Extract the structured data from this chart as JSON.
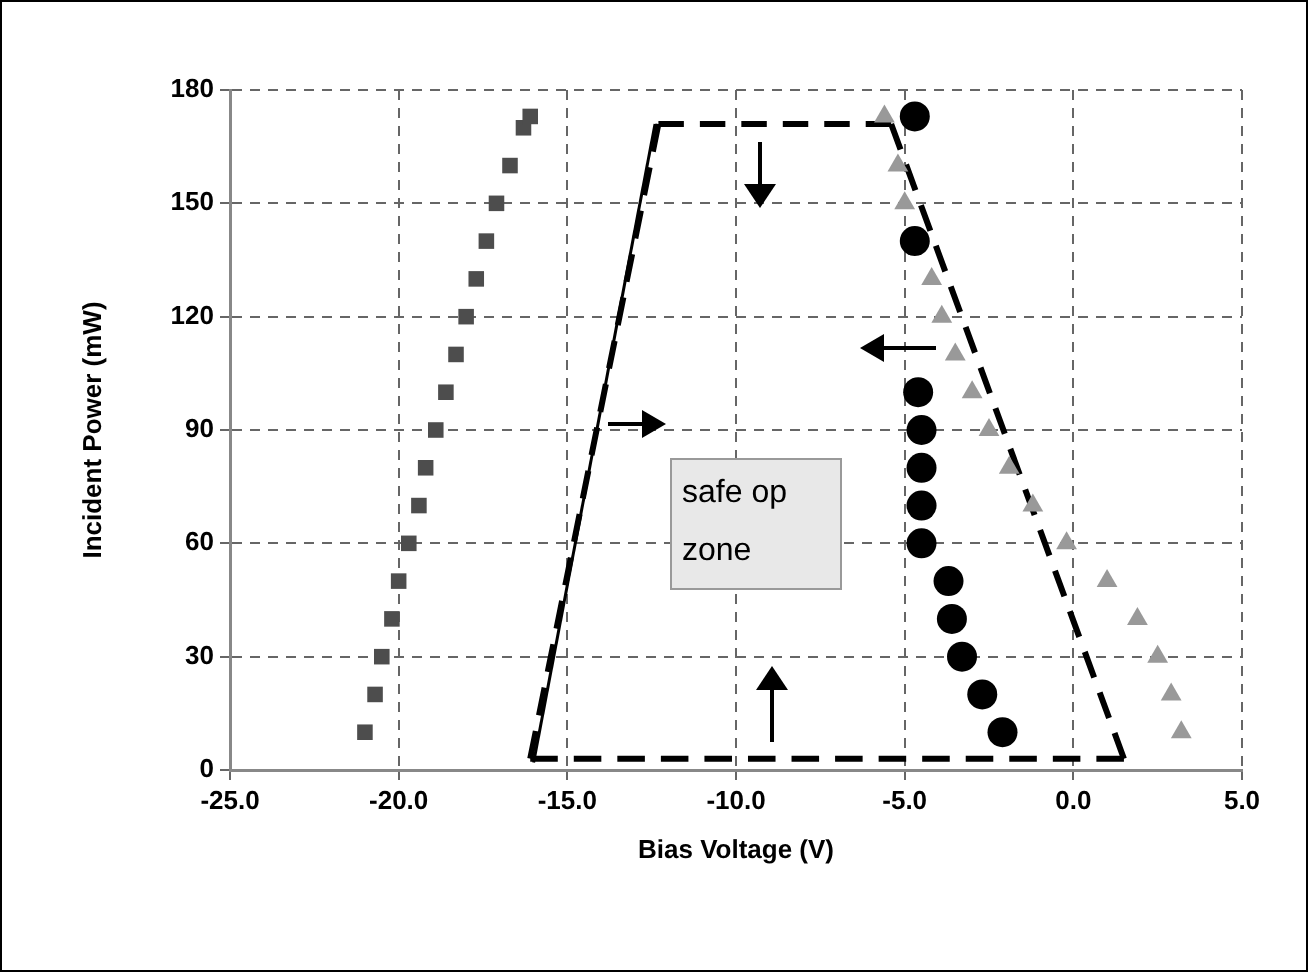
{
  "chart_data": {
    "type": "scatter",
    "xlabel": "Bias Voltage (V)",
    "ylabel": "Incident Power (mW)",
    "xlim": [
      -25,
      5
    ],
    "xticks": [
      {
        "value": -25,
        "label": "-25.0"
      },
      {
        "value": -20,
        "label": "-20.0"
      },
      {
        "value": -15,
        "label": "-15.0"
      },
      {
        "value": -10,
        "label": "-10.0"
      },
      {
        "value": -5,
        "label": "-5.0"
      },
      {
        "value": 0,
        "label": "0.0"
      },
      {
        "value": 5,
        "label": "5.0"
      }
    ],
    "ylim": [
      0,
      180
    ],
    "yticks": [
      0,
      30,
      60,
      90,
      120,
      150,
      180
    ],
    "grid": true,
    "annotations": [
      "safe op\nzone"
    ],
    "series": [
      {
        "marker": "square",
        "color": "#4d4d4d",
        "x": [
          -21.0,
          -20.7,
          -20.5,
          -20.2,
          -20.0,
          -19.7,
          -19.4,
          -19.2,
          -18.9,
          -18.6,
          -18.3,
          -18.0,
          -17.7,
          -17.4,
          -17.1,
          -16.7,
          -16.3,
          -16.1
        ],
        "values": [
          10,
          20,
          30,
          40,
          50,
          60,
          70,
          80,
          90,
          100,
          110,
          120,
          130,
          140,
          150,
          160,
          170,
          173
        ]
      },
      {
        "marker": "circle",
        "color": "#000000",
        "x": [
          -4.7,
          -4.7,
          -4.6,
          -4.5,
          -4.5,
          -4.5,
          -4.5,
          -3.7,
          -3.6,
          -3.3,
          -2.7,
          -2.1
        ],
        "values": [
          173,
          140,
          100,
          90,
          80,
          70,
          60,
          50,
          40,
          30,
          20,
          10
        ]
      },
      {
        "marker": "triangle",
        "color": "#999999",
        "x": [
          -5.6,
          -5.2,
          -5.0,
          -4.2,
          -3.9,
          -3.5,
          -3.0,
          -2.5,
          -1.9,
          -1.2,
          -0.2,
          1.0,
          1.9,
          2.5,
          2.9,
          3.2
        ],
        "values": [
          173,
          160,
          150,
          130,
          120,
          110,
          100,
          90,
          80,
          70,
          60,
          50,
          40,
          30,
          20,
          10
        ]
      },
      {
        "type": "line",
        "marker": "none",
        "line_style": "solid",
        "color": "#000000",
        "x": [
          -16.0,
          -12.4
        ],
        "values": [
          2,
          171
        ]
      },
      {
        "type": "line",
        "marker": "none",
        "line_style": "dashed",
        "color": "#000000",
        "x": [
          -16.1,
          -12.3,
          -5.4,
          1.5,
          -16.1
        ],
        "values": [
          3,
          171,
          171,
          3,
          3
        ]
      }
    ]
  }
}
